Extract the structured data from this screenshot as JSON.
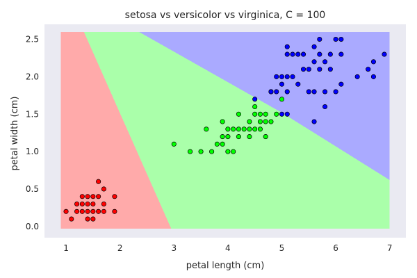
{
  "chart_data": {
    "type": "scatter",
    "title": "setosa vs versicolor vs virginica, C = 100",
    "xlabel": "petal length (cm)",
    "ylabel": "petal width (cm)",
    "xlim": [
      0.6,
      7.3
    ],
    "ylim": [
      -0.15,
      2.7
    ],
    "xticks": [
      1,
      2,
      3,
      4,
      5,
      6,
      7
    ],
    "yticks": [
      0.0,
      0.5,
      1.0,
      1.5,
      2.0,
      2.5
    ],
    "grid": false,
    "background_color": "#eaeaf2",
    "mesh_extent": {
      "x": [
        0.9,
        7.0
      ],
      "y": [
        -0.03,
        2.6
      ]
    },
    "regions": [
      {
        "class": "setosa",
        "color": "#ffaaaa",
        "polygon": [
          [
            0.9,
            -0.03
          ],
          [
            0.9,
            2.6
          ],
          [
            1.33,
            2.6
          ],
          [
            2.95,
            -0.03
          ]
        ]
      },
      {
        "class": "versicolor",
        "color": "#aaffaa",
        "polygon": [
          [
            1.33,
            2.6
          ],
          [
            2.35,
            2.6
          ],
          [
            5.0,
            1.52
          ],
          [
            7.0,
            0.62
          ],
          [
            7.0,
            -0.03
          ],
          [
            2.95,
            -0.03
          ]
        ]
      },
      {
        "class": "virginica",
        "color": "#aaaaff",
        "polygon": [
          [
            2.35,
            2.6
          ],
          [
            7.0,
            2.6
          ],
          [
            7.0,
            0.62
          ],
          [
            5.0,
            1.52
          ]
        ]
      }
    ],
    "series": [
      {
        "name": "setosa",
        "color": "#ff0000",
        "points": [
          [
            1.0,
            0.2
          ],
          [
            1.1,
            0.1
          ],
          [
            1.2,
            0.2
          ],
          [
            1.2,
            0.3
          ],
          [
            1.3,
            0.2
          ],
          [
            1.3,
            0.3
          ],
          [
            1.3,
            0.4
          ],
          [
            1.4,
            0.1
          ],
          [
            1.4,
            0.2
          ],
          [
            1.4,
            0.3
          ],
          [
            1.4,
            0.4
          ],
          [
            1.5,
            0.1
          ],
          [
            1.5,
            0.2
          ],
          [
            1.5,
            0.3
          ],
          [
            1.5,
            0.4
          ],
          [
            1.6,
            0.2
          ],
          [
            1.6,
            0.4
          ],
          [
            1.6,
            0.6
          ],
          [
            1.7,
            0.2
          ],
          [
            1.7,
            0.3
          ],
          [
            1.7,
            0.5
          ],
          [
            1.9,
            0.2
          ],
          [
            1.9,
            0.4
          ]
        ]
      },
      {
        "name": "versicolor",
        "color": "#00ff00",
        "points": [
          [
            3.0,
            1.1
          ],
          [
            3.3,
            1.0
          ],
          [
            3.5,
            1.0
          ],
          [
            3.6,
            1.3
          ],
          [
            3.7,
            1.0
          ],
          [
            3.8,
            1.1
          ],
          [
            3.9,
            1.1
          ],
          [
            3.9,
            1.2
          ],
          [
            3.9,
            1.4
          ],
          [
            4.0,
            1.0
          ],
          [
            4.0,
            1.2
          ],
          [
            4.0,
            1.3
          ],
          [
            4.1,
            1.0
          ],
          [
            4.1,
            1.3
          ],
          [
            4.2,
            1.2
          ],
          [
            4.2,
            1.3
          ],
          [
            4.2,
            1.5
          ],
          [
            4.3,
            1.3
          ],
          [
            4.4,
            1.2
          ],
          [
            4.4,
            1.3
          ],
          [
            4.4,
            1.4
          ],
          [
            4.5,
            1.3
          ],
          [
            4.5,
            1.5
          ],
          [
            4.5,
            1.6
          ],
          [
            4.6,
            1.3
          ],
          [
            4.6,
            1.4
          ],
          [
            4.6,
            1.5
          ],
          [
            4.7,
            1.2
          ],
          [
            4.7,
            1.4
          ],
          [
            4.7,
            1.5
          ],
          [
            4.8,
            1.4
          ],
          [
            4.8,
            1.8
          ],
          [
            4.9,
            1.5
          ],
          [
            5.0,
            1.7
          ]
        ]
      },
      {
        "name": "virginica",
        "color": "#0000ff",
        "points": [
          [
            4.5,
            1.7
          ],
          [
            4.8,
            1.8
          ],
          [
            4.9,
            1.8
          ],
          [
            4.9,
            2.0
          ],
          [
            5.0,
            1.5
          ],
          [
            5.0,
            1.9
          ],
          [
            5.0,
            2.0
          ],
          [
            5.1,
            1.5
          ],
          [
            5.1,
            1.8
          ],
          [
            5.1,
            2.0
          ],
          [
            5.1,
            2.3
          ],
          [
            5.1,
            2.4
          ],
          [
            5.2,
            2.0
          ],
          [
            5.2,
            2.3
          ],
          [
            5.3,
            1.9
          ],
          [
            5.3,
            2.3
          ],
          [
            5.4,
            2.1
          ],
          [
            5.4,
            2.3
          ],
          [
            5.5,
            1.8
          ],
          [
            5.5,
            2.1
          ],
          [
            5.6,
            1.4
          ],
          [
            5.6,
            1.8
          ],
          [
            5.6,
            2.2
          ],
          [
            5.6,
            2.4
          ],
          [
            5.7,
            2.1
          ],
          [
            5.7,
            2.3
          ],
          [
            5.7,
            2.5
          ],
          [
            5.8,
            1.6
          ],
          [
            5.8,
            1.8
          ],
          [
            5.8,
            2.2
          ],
          [
            5.9,
            2.1
          ],
          [
            5.9,
            2.3
          ],
          [
            6.0,
            1.8
          ],
          [
            6.0,
            2.5
          ],
          [
            6.1,
            1.9
          ],
          [
            6.1,
            2.3
          ],
          [
            6.1,
            2.5
          ],
          [
            6.4,
            2.0
          ],
          [
            6.6,
            2.1
          ],
          [
            6.7,
            2.0
          ],
          [
            6.7,
            2.2
          ],
          [
            6.9,
            2.3
          ]
        ]
      }
    ]
  }
}
